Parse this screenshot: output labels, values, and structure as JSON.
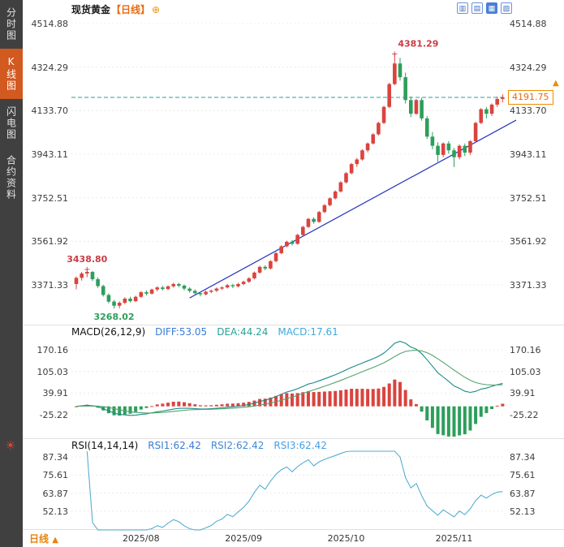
{
  "sidebar": {
    "items": [
      {
        "name": "time-chart",
        "label": "分时图",
        "active": false
      },
      {
        "name": "kline-chart",
        "label": "K线图",
        "active": true
      },
      {
        "name": "lightning-chart",
        "label": "闪电图",
        "active": false
      },
      {
        "name": "contract-info",
        "label": "合约资料",
        "active": false
      }
    ],
    "sun_icon_glyph": "☀"
  },
  "header": {
    "title": "现货黄金",
    "period_tag": "【日线】",
    "plus_icon_glyph": "⊕"
  },
  "toolbar": {
    "buttons": [
      {
        "name": "candlestick-view-icon",
        "glyph": "▥",
        "active": false
      },
      {
        "name": "line-view-icon",
        "glyph": "▤",
        "active": false
      },
      {
        "name": "bar-view-icon",
        "glyph": "▦",
        "active": true
      },
      {
        "name": "grid-view-icon",
        "glyph": "▧",
        "active": false
      }
    ]
  },
  "main_chart": {
    "y_labels": [
      "4514.88",
      "4324.29",
      "4133.70",
      "3943.11",
      "3752.51",
      "3561.92",
      "3371.33"
    ],
    "current_price": "4191.75",
    "price_arrow_glyph": "▲"
  },
  "macd": {
    "title": "MACD(26,12,9)",
    "diff_label": "DIFF:53.05",
    "dea_label": "DEA:44.24",
    "macd_label": "MACD:17.61",
    "y_labels": [
      "170.16",
      "105.03",
      "39.91",
      "-25.22"
    ]
  },
  "rsi": {
    "title": "RSI(14,14,14)",
    "rsi1_label": "RSI1:62.42",
    "rsi2_label": "RSI2:62.42",
    "rsi3_label": "RSI3:62.42",
    "y_labels": [
      "87.34",
      "75.61",
      "63.87",
      "52.13"
    ]
  },
  "bottom": {
    "period_label": "日线",
    "arrow_glyph": "▲"
  },
  "colors": {
    "up": "#d9443f",
    "down": "#2e9e5b",
    "trendline": "#2233bb",
    "current_line": "#2aa198",
    "tag": "#f08c00",
    "diff_line": "#1b8a8a",
    "dea_line": "#55a36b",
    "rsi_line": "#56aed2",
    "grid": "#ececec",
    "separator": "#e0e0e0",
    "annotation_up": "#cc3b44",
    "annotation_down": "#2e9e5b"
  },
  "chart_data": {
    "type": "candlestick",
    "title": "现货黄金 日线",
    "y_axis_ticks": [
      4514.88,
      4324.29,
      4133.7,
      3943.11,
      3752.51,
      3561.92,
      3371.33
    ],
    "current_price": 4191.75,
    "x_labels": [
      {
        "index": 12,
        "label": "2025/08"
      },
      {
        "index": 31,
        "label": "2025/09"
      },
      {
        "index": 50,
        "label": "2025/10"
      },
      {
        "index": 70,
        "label": "2025/11"
      }
    ],
    "annotations": [
      {
        "label": "3438.80",
        "index": 2,
        "price": 3438.8,
        "placement": "above",
        "color": "#cc3b44"
      },
      {
        "label": "4381.29",
        "index": 59,
        "price": 4381.29,
        "placement": "above-right",
        "color": "#cc3b44"
      },
      {
        "label": "3268.02",
        "index": 7,
        "price": 3268.02,
        "placement": "below",
        "color": "#2e9e5b"
      }
    ],
    "trendline": {
      "from": {
        "index": 21,
        "price": 3314
      },
      "to": {
        "index": 80,
        "price": 4092
      }
    },
    "indicators": {
      "macd": {
        "params": [
          26,
          12,
          9
        ],
        "diff": 53.05,
        "dea": 44.24,
        "macd": 17.61,
        "y_ticks": [
          170.16,
          105.03,
          39.91,
          -25.22
        ]
      },
      "rsi": {
        "params": [
          14,
          14,
          14
        ],
        "rsi1": 62.42,
        "rsi2": 62.42,
        "rsi3": 62.42,
        "y_ticks": [
          87.34,
          75.61,
          63.87,
          52.13
        ]
      }
    },
    "candles": [
      [
        3375,
        3408,
        3352,
        3402
      ],
      [
        3402,
        3428,
        3390,
        3421
      ],
      [
        3421,
        3438.8,
        3405,
        3428
      ],
      [
        3428,
        3432,
        3388,
        3396
      ],
      [
        3396,
        3404,
        3358,
        3366
      ],
      [
        3366,
        3372,
        3320,
        3327
      ],
      [
        3327,
        3334,
        3291,
        3298
      ],
      [
        3298,
        3305,
        3268.02,
        3280
      ],
      [
        3280,
        3299,
        3269,
        3293
      ],
      [
        3293,
        3317,
        3287,
        3311
      ],
      [
        3311,
        3319,
        3294,
        3300
      ],
      [
        3300,
        3324,
        3296,
        3319
      ],
      [
        3319,
        3344,
        3314,
        3339
      ],
      [
        3339,
        3347,
        3325,
        3333
      ],
      [
        3333,
        3355,
        3329,
        3351
      ],
      [
        3351,
        3365,
        3343,
        3360
      ],
      [
        3360,
        3367,
        3347,
        3353
      ],
      [
        3353,
        3369,
        3349,
        3365
      ],
      [
        3365,
        3381,
        3359,
        3375
      ],
      [
        3375,
        3380,
        3361,
        3368
      ],
      [
        3368,
        3373,
        3347,
        3355
      ],
      [
        3355,
        3361,
        3337,
        3345
      ],
      [
        3345,
        3351,
        3327,
        3335
      ],
      [
        3335,
        3343,
        3321,
        3330
      ],
      [
        3330,
        3347,
        3325,
        3341
      ],
      [
        3341,
        3351,
        3335,
        3346
      ],
      [
        3346,
        3360,
        3340,
        3355
      ],
      [
        3355,
        3365,
        3349,
        3360
      ],
      [
        3360,
        3375,
        3355,
        3370
      ],
      [
        3370,
        3376,
        3357,
        3365
      ],
      [
        3365,
        3380,
        3360,
        3375
      ],
      [
        3375,
        3390,
        3370,
        3385
      ],
      [
        3385,
        3405,
        3380,
        3400
      ],
      [
        3400,
        3430,
        3395,
        3425
      ],
      [
        3425,
        3455,
        3420,
        3450
      ],
      [
        3450,
        3457,
        3435,
        3443
      ],
      [
        3443,
        3480,
        3439,
        3475
      ],
      [
        3475,
        3515,
        3470,
        3510
      ],
      [
        3510,
        3545,
        3505,
        3540
      ],
      [
        3540,
        3565,
        3535,
        3560
      ],
      [
        3560,
        3567,
        3543,
        3551
      ],
      [
        3551,
        3595,
        3547,
        3590
      ],
      [
        3590,
        3630,
        3585,
        3625
      ],
      [
        3625,
        3665,
        3620,
        3660
      ],
      [
        3660,
        3667,
        3639,
        3647
      ],
      [
        3647,
        3695,
        3643,
        3690
      ],
      [
        3690,
        3725,
        3685,
        3720
      ],
      [
        3720,
        3755,
        3715,
        3750
      ],
      [
        3750,
        3785,
        3745,
        3780
      ],
      [
        3780,
        3825,
        3775,
        3820
      ],
      [
        3820,
        3865,
        3815,
        3860
      ],
      [
        3860,
        3905,
        3855,
        3900
      ],
      [
        3900,
        3927,
        3887,
        3920
      ],
      [
        3920,
        3965,
        3915,
        3960
      ],
      [
        3960,
        3995,
        3951,
        3990
      ],
      [
        3990,
        4035,
        3985,
        4030
      ],
      [
        4030,
        4085,
        4025,
        4080
      ],
      [
        4080,
        4155,
        4075,
        4150
      ],
      [
        4150,
        4255,
        4145,
        4250
      ],
      [
        4250,
        4381.29,
        4245,
        4340
      ],
      [
        4340,
        4365,
        4265,
        4280
      ],
      [
        4280,
        4300,
        4165,
        4180
      ],
      [
        4180,
        4195,
        4105,
        4120
      ],
      [
        4120,
        4185,
        4115,
        4180
      ],
      [
        4180,
        4190,
        4090,
        4100
      ],
      [
        4100,
        4110,
        4010,
        4020
      ],
      [
        4020,
        4040,
        3965,
        3980
      ],
      [
        3980,
        3995,
        3910,
        3940
      ],
      [
        3940,
        3995,
        3930,
        3990
      ],
      [
        3990,
        4000,
        3945,
        3960
      ],
      [
        3960,
        3970,
        3887,
        3930
      ],
      [
        3930,
        3985,
        3920,
        3980
      ],
      [
        3980,
        3990,
        3935,
        3950
      ],
      [
        3950,
        4005,
        3940,
        4000
      ],
      [
        4000,
        4085,
        3995,
        4080
      ],
      [
        4080,
        4145,
        4075,
        4140
      ],
      [
        4140,
        4150,
        4100,
        4120
      ],
      [
        4120,
        4165,
        4110,
        4160
      ],
      [
        4160,
        4195,
        4150,
        4185
      ],
      [
        4185,
        4205,
        4170,
        4191.75
      ]
    ]
  }
}
